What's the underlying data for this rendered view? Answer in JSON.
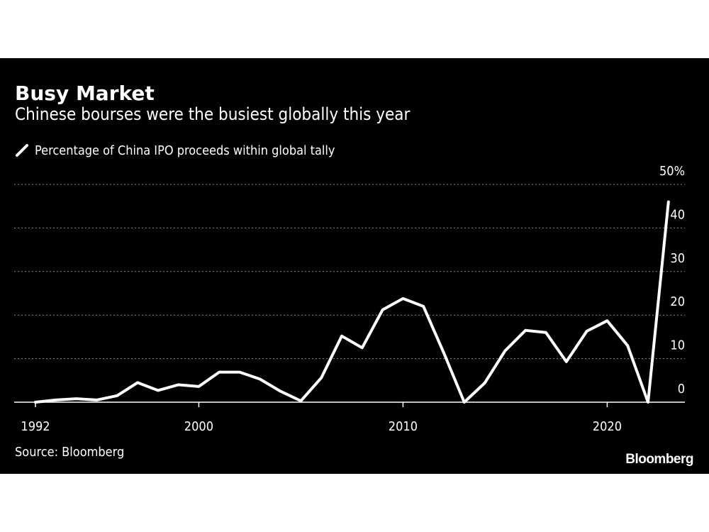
{
  "chart_data": {
    "type": "line",
    "title": "Busy Market",
    "subtitle": "Chinese bourses were the busiest globally this year",
    "source": "Source: Bloomberg",
    "brand": "Bloomberg",
    "ylim": [
      0,
      50
    ],
    "xlim": [
      1992,
      2024
    ],
    "y_ticks": [
      0,
      10,
      20,
      30,
      40,
      50
    ],
    "y_tick_labels": [
      "0",
      "10",
      "20",
      "30",
      "40",
      "50%"
    ],
    "x_ticks": [
      1992,
      2000,
      2010,
      2020
    ],
    "x_tick_labels": [
      "1992",
      "2000",
      "2010",
      "2020"
    ],
    "grid": "horizontal dotted",
    "legend_position": "top-left",
    "series": [
      {
        "name": "Percentage of China IPO proceeds within global tally",
        "color": "#ffffff",
        "x": [
          1992,
          1993,
          1994,
          1995,
          1996,
          1997,
          1998,
          1999,
          2000,
          2001,
          2002,
          2003,
          2004,
          2005,
          2006,
          2007,
          2008,
          2009,
          2010,
          2011,
          2012,
          2013,
          2014,
          2015,
          2016,
          2017,
          2018,
          2019,
          2020,
          2021,
          2022,
          2023
        ],
        "values": [
          0,
          0.5,
          0.8,
          0.5,
          1.5,
          4.5,
          2.7,
          4,
          3.6,
          6.9,
          6.9,
          5.3,
          2.5,
          0.3,
          5.6,
          15.2,
          12.5,
          21.2,
          23.8,
          22,
          11.3,
          0,
          4.4,
          11.8,
          16.5,
          16,
          9.3,
          16.3,
          18.7,
          13,
          0,
          46
        ]
      }
    ]
  },
  "colors": {
    "background": "#000000",
    "line": "#ffffff",
    "grid": "#8c8c8c",
    "page": "#ffffff"
  }
}
